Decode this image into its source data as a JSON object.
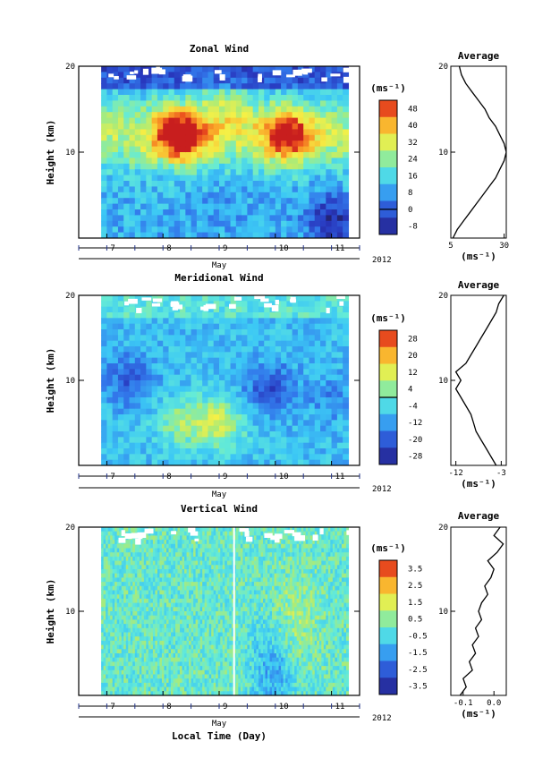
{
  "chart_data": [
    {
      "type": "heatmap",
      "title": "Zonal Wind",
      "ylabel": "Height (km)",
      "ylim": [
        0,
        20
      ],
      "yticks": [
        "20",
        "10"
      ],
      "x_ticks": [
        "7",
        "8",
        "9",
        "10",
        "11"
      ],
      "x_month": "May",
      "x_year": "2012",
      "xlim": [
        6.5,
        11.5
      ],
      "data_xlim": [
        6.9,
        11.3
      ],
      "colorbar": {
        "unit": "(ms⁻¹)",
        "ticks": [
          "48",
          "40",
          "32",
          "24",
          "16",
          "8",
          "0",
          "-8"
        ],
        "range": [
          -12,
          52
        ],
        "contour_level": 0
      },
      "features": [
        {
          "x": 8.3,
          "y": 12,
          "value": 46
        },
        {
          "x": 10.2,
          "y": 12,
          "value": 40
        },
        {
          "x": 9.1,
          "y": 15,
          "value": 20
        },
        {
          "x": 9.0,
          "y": 3,
          "value": 8
        },
        {
          "x": 11.0,
          "y": 2,
          "value": -8
        }
      ],
      "profile": {
        "title": "Average",
        "x_ticks": [
          "5",
          "30"
        ],
        "xlim": [
          5,
          31
        ],
        "xlabel": "(ms⁻¹)",
        "ylim": [
          0,
          20
        ],
        "yticks": [
          "20",
          "10"
        ],
        "x": [
          6,
          8,
          11,
          14,
          17,
          20,
          23,
          26,
          28,
          30,
          31,
          30,
          28,
          26,
          23,
          21,
          18,
          15,
          12,
          10,
          9
        ],
        "y": [
          0,
          1,
          2,
          3,
          4,
          5,
          6,
          7,
          8,
          9,
          10,
          11,
          12,
          13,
          14,
          15,
          16,
          17,
          18,
          19,
          20
        ]
      }
    },
    {
      "type": "heatmap",
      "title": "Meridional Wind",
      "ylabel": "Height (km)",
      "ylim": [
        0,
        20
      ],
      "yticks": [
        "20",
        "10"
      ],
      "x_ticks": [
        "7",
        "8",
        "9",
        "10",
        "11"
      ],
      "x_month": "May",
      "x_year": "2012",
      "xlim": [
        6.5,
        11.5
      ],
      "data_xlim": [
        6.9,
        11.3
      ],
      "colorbar": {
        "unit": "(ms⁻¹)",
        "ticks": [
          "28",
          "20",
          "12",
          "4",
          "-4",
          "-12",
          "-20",
          "-28"
        ],
        "range": [
          -32,
          32
        ],
        "contour_level": 0
      },
      "features": [
        {
          "x": 9.0,
          "y": 5,
          "value": 10
        },
        {
          "x": 8.3,
          "y": 5,
          "value": 4
        },
        {
          "x": 7.4,
          "y": 10,
          "value": -20
        },
        {
          "x": 9.9,
          "y": 9,
          "value": -22
        },
        {
          "x": 11.0,
          "y": 8,
          "value": -14
        }
      ],
      "profile": {
        "title": "Average",
        "x_ticks": [
          "-12",
          "-3"
        ],
        "xlim": [
          -13,
          -2
        ],
        "xlabel": "(ms⁻¹)",
        "ylim": [
          0,
          20
        ],
        "yticks": [
          "20",
          "10"
        ],
        "x": [
          -4,
          -5,
          -6,
          -7,
          -8,
          -8.5,
          -9,
          -10,
          -11,
          -12,
          -11,
          -12,
          -10,
          -9,
          -8,
          -7,
          -6,
          -5,
          -4,
          -3.5,
          -2.5
        ],
        "y": [
          0,
          1,
          2,
          3,
          4,
          5,
          6,
          7,
          8,
          9,
          10,
          11,
          12,
          13,
          14,
          15,
          16,
          17,
          18,
          19,
          20
        ]
      }
    },
    {
      "type": "heatmap",
      "title": "Vertical Wind",
      "ylabel": "Height (km)",
      "ylim": [
        0,
        20
      ],
      "yticks": [
        "20",
        "10"
      ],
      "x_ticks": [
        "7",
        "8",
        "9",
        "10",
        "11"
      ],
      "x_month": "May",
      "x_year": "2012",
      "xlim": [
        6.5,
        11.5
      ],
      "data_xlim": [
        6.9,
        11.3
      ],
      "xlabel": "Local Time (Day)",
      "colorbar": {
        "unit": "(ms⁻¹)",
        "ticks": [
          "3.5",
          "2.5",
          "1.5",
          "0.5",
          "-0.5",
          "-1.5",
          "-2.5",
          "-3.5"
        ],
        "range": [
          -4,
          4
        ]
      },
      "features": [
        {
          "x": 10.3,
          "y": 8,
          "value": 1.0
        },
        {
          "x": 8.0,
          "y": 5,
          "value": 0.0
        },
        {
          "x": 10.0,
          "y": 3,
          "value": -1.5
        }
      ],
      "profile": {
        "title": "Average",
        "x_ticks": [
          "-0.1",
          "0.0"
        ],
        "xlim": [
          -0.14,
          0.04
        ],
        "xlabel": "(ms⁻¹)",
        "ylim": [
          0,
          20
        ],
        "yticks": [
          "20",
          "10"
        ],
        "x": [
          -0.11,
          -0.09,
          -0.1,
          -0.07,
          -0.08,
          -0.06,
          -0.07,
          -0.05,
          -0.06,
          -0.04,
          -0.05,
          -0.04,
          -0.02,
          -0.03,
          -0.01,
          0.0,
          -0.02,
          0.01,
          0.03,
          0.0,
          0.02
        ],
        "y": [
          0,
          1,
          2,
          3,
          4,
          5,
          6,
          7,
          8,
          9,
          10,
          11,
          12,
          13,
          14,
          15,
          16,
          17,
          18,
          19,
          20
        ]
      }
    }
  ]
}
